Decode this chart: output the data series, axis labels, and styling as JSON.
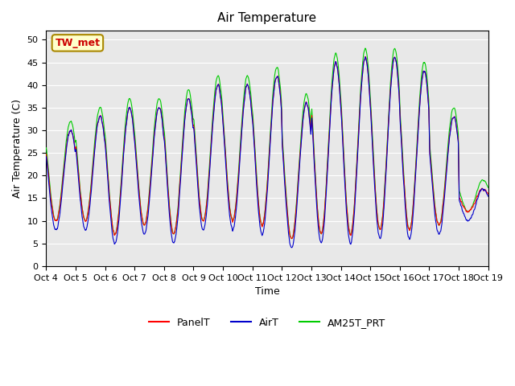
{
  "title": "Air Temperature",
  "ylabel": "Air Temperature (C)",
  "xlabel": "Time",
  "annotation": "TW_met",
  "ylim": [
    0,
    52
  ],
  "yticks": [
    0,
    5,
    10,
    15,
    20,
    25,
    30,
    35,
    40,
    45,
    50
  ],
  "x_labels": [
    "Oct 4",
    "Oct 5",
    "Oct 6",
    "Oct 7",
    "Oct 8",
    "Oct 9",
    "Oct 10",
    "Oct 11",
    "Oct 12",
    "Oct 13",
    "Oct 14",
    "Oct 15",
    "Oct 16",
    "Oct 17",
    "Oct 18",
    "Oct 19"
  ],
  "color_panel": "#ff0000",
  "color_air": "#0000cc",
  "color_am25": "#00cc00",
  "bg_color": "#e8e8e8",
  "legend_labels": [
    "PanelT",
    "AirT",
    "AM25T_PRT"
  ],
  "annotation_bg": "#ffffcc",
  "annotation_fg": "#cc0000",
  "n_days": 15,
  "samples_per_day": 96
}
